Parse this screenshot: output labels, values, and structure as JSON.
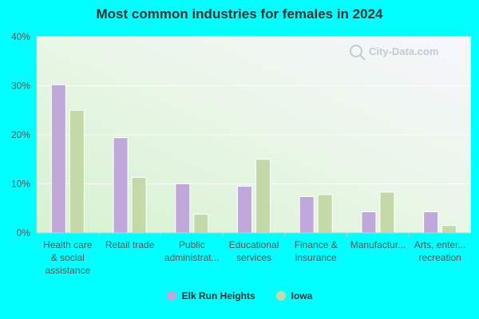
{
  "chart_data": {
    "type": "bar",
    "title": "Most common industries for females in 2024",
    "categories": [
      [
        "Health care",
        "& social",
        "assistance"
      ],
      [
        "Retail trade"
      ],
      [
        "Public",
        "administrat..."
      ],
      [
        "Educational",
        "services"
      ],
      [
        "Finance &",
        "insurance"
      ],
      [
        "Manufactur..."
      ],
      [
        "Arts, enter...",
        "recreation"
      ]
    ],
    "series": [
      {
        "name": "Elk Run Heights",
        "color": "#c0a8da",
        "values": [
          30.2,
          19.4,
          10.0,
          9.5,
          7.4,
          4.3,
          4.3
        ]
      },
      {
        "name": "Iowa",
        "color": "#c5d9a8",
        "values": [
          25.0,
          11.3,
          3.8,
          15.0,
          7.8,
          8.3,
          1.5
        ]
      }
    ],
    "ylim": [
      0,
      40
    ],
    "yticks": [
      "0%",
      "10%",
      "20%",
      "30%",
      "40%"
    ],
    "grid": true,
    "legend_position": "bottom"
  },
  "watermark": "City-Data.com"
}
